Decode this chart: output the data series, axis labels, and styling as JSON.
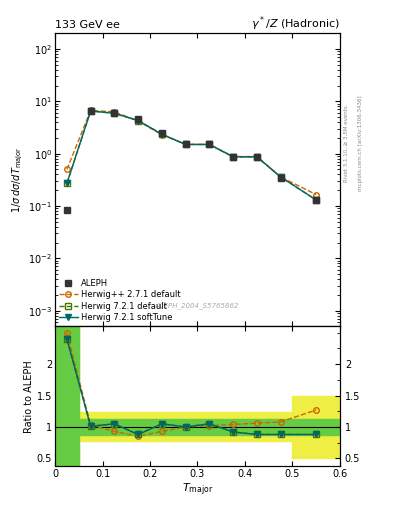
{
  "title_left": "133 GeV ee",
  "title_right": "γ*/Z (Hadronic)",
  "ylabel_main": "1/σ dσ/dT_major",
  "ylabel_ratio": "Ratio to ALEPH",
  "xlabel": "T_major",
  "right_label_top": "Rivet 3.1.10, ≥ 3.5M events",
  "right_label_bottom": "mcplots.cern.ch [arXiv:1306.3436]",
  "watermark": "ALEPH_2004_S5765862",
  "aleph_x": [
    0.025,
    0.075,
    0.125,
    0.175,
    0.225,
    0.275,
    0.325,
    0.375,
    0.425,
    0.475,
    0.55
  ],
  "aleph_y": [
    0.085,
    6.5,
    6.0,
    4.5,
    2.5,
    1.5,
    1.5,
    0.85,
    0.85,
    0.35,
    0.13
  ],
  "herwig_pp_x": [
    0.025,
    0.075,
    0.125,
    0.175,
    0.225,
    0.275,
    0.325,
    0.375,
    0.425,
    0.475,
    0.55
  ],
  "herwig_pp_y": [
    0.5,
    6.7,
    6.3,
    4.2,
    2.3,
    1.5,
    1.5,
    0.88,
    0.88,
    0.36,
    0.165
  ],
  "herwig721_x": [
    0.025,
    0.075,
    0.125,
    0.175,
    0.225,
    0.275,
    0.325,
    0.375,
    0.425,
    0.475,
    0.55
  ],
  "herwig721_y": [
    0.27,
    6.55,
    5.9,
    4.3,
    2.35,
    1.5,
    1.5,
    0.87,
    0.87,
    0.36,
    0.13
  ],
  "herwig721soft_x": [
    0.025,
    0.075,
    0.125,
    0.175,
    0.225,
    0.275,
    0.325,
    0.375,
    0.425,
    0.475,
    0.55
  ],
  "herwig721soft_y": [
    0.27,
    6.55,
    5.9,
    4.3,
    2.35,
    1.5,
    1.5,
    0.87,
    0.87,
    0.36,
    0.13
  ],
  "ratio_herwig_pp_x": [
    0.025,
    0.075,
    0.125,
    0.175,
    0.225,
    0.275,
    0.325,
    0.375,
    0.425,
    0.475,
    0.55
  ],
  "ratio_herwig_pp_y": [
    2.5,
    1.03,
    0.93,
    0.85,
    0.93,
    1.0,
    1.02,
    1.04,
    1.06,
    1.08,
    1.27
  ],
  "ratio_herwig721_x": [
    0.025,
    0.075,
    0.125,
    0.175,
    0.225,
    0.275,
    0.325,
    0.375,
    0.425,
    0.475,
    0.55
  ],
  "ratio_herwig721_y": [
    2.4,
    1.01,
    1.05,
    0.88,
    1.05,
    1.0,
    1.05,
    0.92,
    0.88,
    0.88,
    0.88
  ],
  "ratio_herwig721soft_x": [
    0.025,
    0.075,
    0.125,
    0.175,
    0.225,
    0.275,
    0.325,
    0.375,
    0.425,
    0.475,
    0.55
  ],
  "ratio_herwig721soft_y": [
    2.4,
    1.01,
    1.05,
    0.88,
    1.05,
    1.0,
    1.05,
    0.92,
    0.88,
    0.88,
    0.88
  ],
  "band_green_x": [
    0.0,
    0.05,
    0.1,
    0.2,
    0.3,
    0.4,
    0.5,
    0.6
  ],
  "band_green_lo": [
    0.4,
    0.87,
    0.87,
    0.87,
    0.87,
    0.87,
    0.87,
    0.87
  ],
  "band_green_hi": [
    2.6,
    1.13,
    1.13,
    1.13,
    1.13,
    1.13,
    1.13,
    1.13
  ],
  "band_yellow_x": [
    0.0,
    0.05,
    0.1,
    0.2,
    0.3,
    0.4,
    0.5,
    0.6
  ],
  "band_yellow_lo": [
    0.4,
    0.77,
    0.77,
    0.77,
    0.77,
    0.77,
    0.5,
    0.5
  ],
  "band_yellow_hi": [
    2.6,
    1.23,
    1.23,
    1.23,
    1.23,
    1.23,
    1.5,
    1.5
  ],
  "color_aleph": "#333333",
  "color_herwig_pp": "#cc6600",
  "color_herwig721": "#447700",
  "color_herwig721soft": "#006666",
  "color_band_green": "#66cc44",
  "color_band_yellow": "#eeee44",
  "main_ylim": [
    0.0005,
    200
  ],
  "ratio_ylim": [
    0.38,
    2.6
  ],
  "xlim": [
    0.0,
    0.6
  ]
}
